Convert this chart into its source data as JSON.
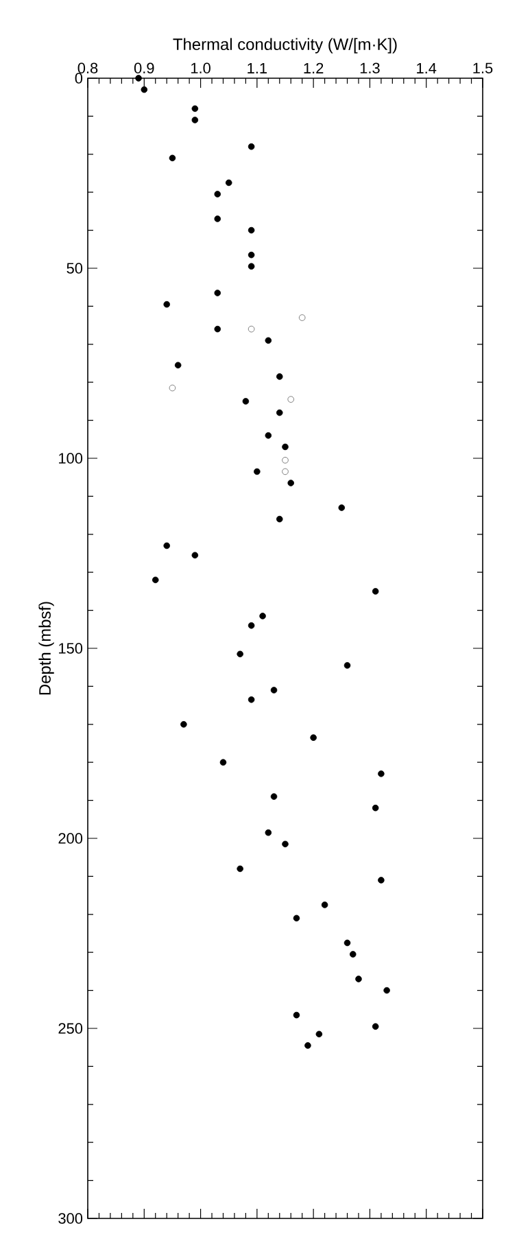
{
  "chart_data": {
    "type": "scatter",
    "xlabel": "Thermal conductivity (W/[m·K])",
    "ylabel": "Depth (mbsf)",
    "xlim": [
      0.8,
      1.5
    ],
    "xticks": [
      0.8,
      0.9,
      {
        "value": 1.0,
        "label": "1.0"
      },
      1.1,
      1.2,
      1.3,
      1.4,
      1.5
    ],
    "ylim": [
      300,
      0
    ],
    "yticks": [
      0,
      50,
      100,
      150,
      200,
      250,
      300
    ],
    "grid": false,
    "series": [
      {
        "color": "#000000",
        "marker": "circle",
        "x": [
          0.89,
          0.9,
          0.99,
          0.99,
          1.09,
          0.95,
          1.05,
          1.03,
          1.03,
          1.09,
          1.09,
          1.09,
          1.03,
          0.94,
          1.03,
          1.12,
          0.96,
          1.14,
          1.08,
          1.14,
          1.12,
          1.15,
          1.1,
          1.16,
          1.25,
          1.14,
          0.94,
          0.99,
          0.92,
          1.31,
          1.11,
          1.09,
          1.07,
          1.26,
          1.13,
          1.09,
          0.97,
          1.2,
          1.04,
          1.32,
          1.13,
          1.31,
          1.12,
          1.15,
          1.07,
          1.32,
          1.22,
          1.17,
          1.26,
          1.27,
          1.28,
          1.33,
          1.17,
          1.31,
          1.21,
          1.19
        ],
        "values": [
          0,
          3,
          8,
          11,
          18,
          21,
          27.5,
          30.5,
          37,
          40,
          46.5,
          49.5,
          56.5,
          59.5,
          66,
          69,
          75.5,
          78.5,
          85,
          88,
          94,
          97,
          103.5,
          106.5,
          113,
          116,
          123,
          125.5,
          132,
          135,
          141.5,
          144,
          151.5,
          154.5,
          161,
          163.5,
          170,
          173.5,
          180,
          183,
          189,
          192,
          198.5,
          201.5,
          208,
          211,
          217.5,
          221,
          227.5,
          230.5,
          237,
          240,
          246.5,
          249.5,
          251.5,
          254.5
        ]
      },
      {
        "color": "#808080",
        "marker": "open circle",
        "x": [
          1.18,
          1.09,
          0.95,
          1.16,
          1.15,
          1.15
        ],
        "values": [
          63,
          66,
          81.5,
          84.5,
          100.5,
          103.5
        ]
      }
    ]
  }
}
